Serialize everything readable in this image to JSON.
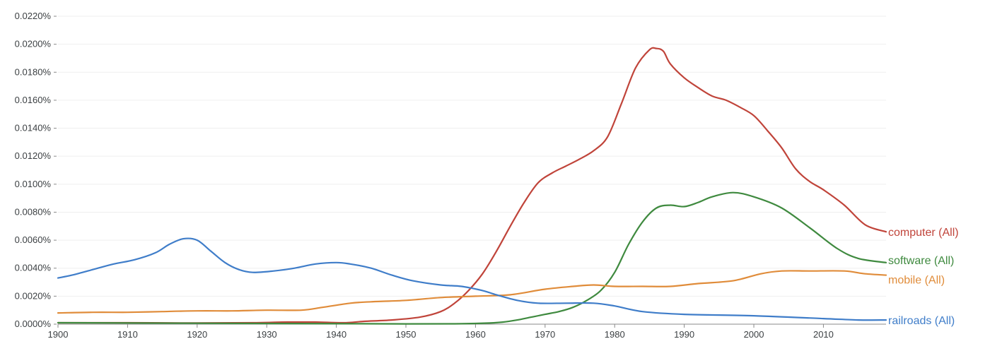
{
  "chart_data": {
    "type": "line",
    "title": "",
    "xlabel": "",
    "ylabel": "",
    "xlim": [
      1900,
      2019
    ],
    "ylim": [
      0,
      0.022
    ],
    "grid": true,
    "legend": "inline-right",
    "y_ticks": [
      {
        "value": 0.0,
        "label": "0.0000%"
      },
      {
        "value": 0.002,
        "label": "0.0020%"
      },
      {
        "value": 0.004,
        "label": "0.0040%"
      },
      {
        "value": 0.006,
        "label": "0.0060%"
      },
      {
        "value": 0.008,
        "label": "0.0080%"
      },
      {
        "value": 0.01,
        "label": "0.0100%"
      },
      {
        "value": 0.012,
        "label": "0.0120%"
      },
      {
        "value": 0.014,
        "label": "0.0140%"
      },
      {
        "value": 0.016,
        "label": "0.0160%"
      },
      {
        "value": 0.018,
        "label": "0.0180%"
      },
      {
        "value": 0.02,
        "label": "0.0200%"
      },
      {
        "value": 0.022,
        "label": "0.0220%"
      }
    ],
    "x_ticks": [
      {
        "value": 1900,
        "label": "1900"
      },
      {
        "value": 1910,
        "label": "1910"
      },
      {
        "value": 1920,
        "label": "1920"
      },
      {
        "value": 1930,
        "label": "1930"
      },
      {
        "value": 1940,
        "label": "1940"
      },
      {
        "value": 1950,
        "label": "1950"
      },
      {
        "value": 1960,
        "label": "1960"
      },
      {
        "value": 1970,
        "label": "1970"
      },
      {
        "value": 1980,
        "label": "1980"
      },
      {
        "value": 1990,
        "label": "1990"
      },
      {
        "value": 2000,
        "label": "2000"
      },
      {
        "value": 2010,
        "label": "2010"
      }
    ],
    "series": [
      {
        "name": "computer (All)",
        "color": "#c0443a",
        "points": [
          [
            1900,
            0.0001
          ],
          [
            1910,
            0.0001
          ],
          [
            1920,
            8e-05
          ],
          [
            1928,
            0.0001
          ],
          [
            1933,
            0.00015
          ],
          [
            1937,
            0.00015
          ],
          [
            1941,
            0.0001
          ],
          [
            1944,
            0.0002
          ],
          [
            1948,
            0.0003
          ],
          [
            1952,
            0.0005
          ],
          [
            1955,
            0.0009
          ],
          [
            1957,
            0.0015
          ],
          [
            1959,
            0.0024
          ],
          [
            1961,
            0.0036
          ],
          [
            1963,
            0.0052
          ],
          [
            1965,
            0.007
          ],
          [
            1967,
            0.0087
          ],
          [
            1969,
            0.0101
          ],
          [
            1971,
            0.0108
          ],
          [
            1973,
            0.0113
          ],
          [
            1975,
            0.0118
          ],
          [
            1977,
            0.0124
          ],
          [
            1979,
            0.0134
          ],
          [
            1981,
            0.0158
          ],
          [
            1983,
            0.0183
          ],
          [
            1985,
            0.0196
          ],
          [
            1986,
            0.0197
          ],
          [
            1987,
            0.0195
          ],
          [
            1988,
            0.0186
          ],
          [
            1990,
            0.0176
          ],
          [
            1992,
            0.0169
          ],
          [
            1994,
            0.0163
          ],
          [
            1996,
            0.016
          ],
          [
            1998,
            0.0155
          ],
          [
            2000,
            0.0149
          ],
          [
            2002,
            0.0138
          ],
          [
            2004,
            0.0126
          ],
          [
            2006,
            0.0111
          ],
          [
            2008,
            0.0102
          ],
          [
            2010,
            0.0096
          ],
          [
            2013,
            0.0085
          ],
          [
            2016,
            0.0071
          ],
          [
            2019,
            0.0066
          ]
        ]
      },
      {
        "name": "software (All)",
        "color": "#3f8a3f",
        "points": [
          [
            1900,
            0.0001
          ],
          [
            1930,
            5e-05
          ],
          [
            1950,
            2e-05
          ],
          [
            1958,
            3e-05
          ],
          [
            1962,
            8e-05
          ],
          [
            1964,
            0.00015
          ],
          [
            1966,
            0.0003
          ],
          [
            1968,
            0.0005
          ],
          [
            1970,
            0.0007
          ],
          [
            1972,
            0.0009
          ],
          [
            1974,
            0.0012
          ],
          [
            1976,
            0.0017
          ],
          [
            1978,
            0.0024
          ],
          [
            1980,
            0.0037
          ],
          [
            1982,
            0.0057
          ],
          [
            1984,
            0.0073
          ],
          [
            1986,
            0.0083
          ],
          [
            1988,
            0.0085
          ],
          [
            1990,
            0.0084
          ],
          [
            1992,
            0.0087
          ],
          [
            1994,
            0.0091
          ],
          [
            1997,
            0.0094
          ],
          [
            2000,
            0.0091
          ],
          [
            2004,
            0.0083
          ],
          [
            2008,
            0.0069
          ],
          [
            2012,
            0.0054
          ],
          [
            2015,
            0.0047
          ],
          [
            2019,
            0.0044
          ]
        ]
      },
      {
        "name": "mobile (All)",
        "color": "#e08c3a",
        "points": [
          [
            1900,
            0.0008
          ],
          [
            1905,
            0.00085
          ],
          [
            1910,
            0.00085
          ],
          [
            1915,
            0.0009
          ],
          [
            1920,
            0.00095
          ],
          [
            1925,
            0.00095
          ],
          [
            1930,
            0.001
          ],
          [
            1935,
            0.001
          ],
          [
            1938,
            0.0012
          ],
          [
            1942,
            0.0015
          ],
          [
            1945,
            0.0016
          ],
          [
            1950,
            0.0017
          ],
          [
            1955,
            0.0019
          ],
          [
            1960,
            0.002
          ],
          [
            1965,
            0.0021
          ],
          [
            1970,
            0.0025
          ],
          [
            1974,
            0.0027
          ],
          [
            1977,
            0.0028
          ],
          [
            1980,
            0.0027
          ],
          [
            1984,
            0.0027
          ],
          [
            1988,
            0.0027
          ],
          [
            1992,
            0.0029
          ],
          [
            1997,
            0.0031
          ],
          [
            2001,
            0.0036
          ],
          [
            2004,
            0.0038
          ],
          [
            2008,
            0.0038
          ],
          [
            2013,
            0.0038
          ],
          [
            2016,
            0.0036
          ],
          [
            2019,
            0.0035
          ]
        ]
      },
      {
        "name": "railroads (All)",
        "color": "#3f7dc9",
        "points": [
          [
            1900,
            0.0033
          ],
          [
            1902,
            0.0035
          ],
          [
            1905,
            0.0039
          ],
          [
            1908,
            0.0043
          ],
          [
            1911,
            0.0046
          ],
          [
            1914,
            0.0051
          ],
          [
            1916,
            0.0057
          ],
          [
            1918,
            0.0061
          ],
          [
            1920,
            0.006
          ],
          [
            1922,
            0.0052
          ],
          [
            1924,
            0.0044
          ],
          [
            1926,
            0.0039
          ],
          [
            1928,
            0.0037
          ],
          [
            1931,
            0.0038
          ],
          [
            1934,
            0.004
          ],
          [
            1937,
            0.0043
          ],
          [
            1940,
            0.0044
          ],
          [
            1942,
            0.0043
          ],
          [
            1945,
            0.004
          ],
          [
            1948,
            0.0035
          ],
          [
            1951,
            0.0031
          ],
          [
            1955,
            0.0028
          ],
          [
            1958,
            0.0027
          ],
          [
            1961,
            0.0024
          ],
          [
            1963,
            0.0021
          ],
          [
            1966,
            0.0017
          ],
          [
            1969,
            0.0015
          ],
          [
            1973,
            0.0015
          ],
          [
            1977,
            0.0015
          ],
          [
            1980,
            0.0013
          ],
          [
            1984,
            0.0009
          ],
          [
            1990,
            0.0007
          ],
          [
            2000,
            0.0006
          ],
          [
            2010,
            0.0004
          ],
          [
            2015,
            0.0003
          ],
          [
            2019,
            0.0003
          ]
        ]
      }
    ]
  }
}
